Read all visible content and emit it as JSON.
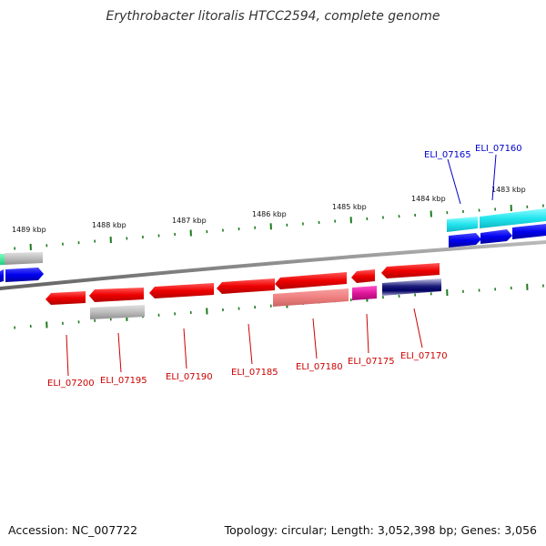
{
  "title": "Erythrobacter litoralis HTCC2594, complete genome",
  "accession": "Accession: NC_007722",
  "summary": "Topology: circular; Length: 3,052,398 bp; Genes: 3,056",
  "colors": {
    "backbone": "#8c8c8c",
    "tick": "#1f7a1f",
    "forward_label": "#0000cc",
    "reverse_label": "#cc0000"
  },
  "scale": {
    "ticks": [
      {
        "label": "1489 kbp"
      },
      {
        "label": "1488 kbp"
      },
      {
        "label": "1487 kbp"
      },
      {
        "label": "1486 kbp"
      },
      {
        "label": "1485 kbp"
      },
      {
        "label": "1484 kbp"
      },
      {
        "label": "1483 kbp"
      }
    ]
  },
  "genes": [
    {
      "name": "ELI_07200",
      "strand": "reverse"
    },
    {
      "name": "ELI_07195",
      "strand": "reverse"
    },
    {
      "name": "ELI_07190",
      "strand": "reverse"
    },
    {
      "name": "ELI_07185",
      "strand": "reverse"
    },
    {
      "name": "ELI_07180",
      "strand": "reverse"
    },
    {
      "name": "ELI_07175",
      "strand": "reverse"
    },
    {
      "name": "ELI_07170",
      "strand": "reverse"
    },
    {
      "name": "ELI_07165",
      "strand": "forward"
    },
    {
      "name": "ELI_07160",
      "strand": "forward"
    }
  ]
}
